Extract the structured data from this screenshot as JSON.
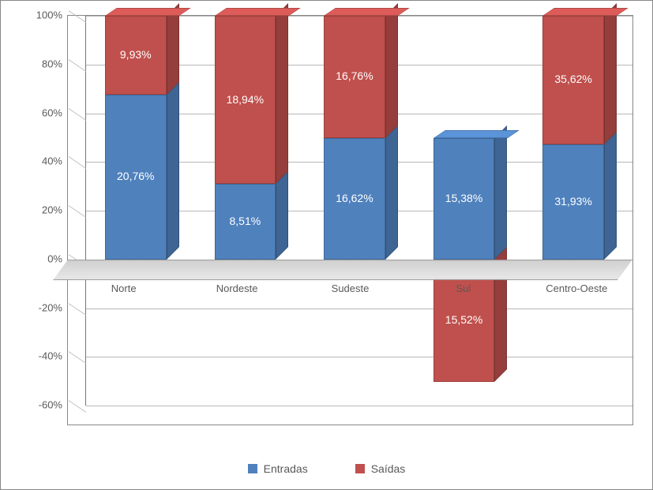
{
  "chart": {
    "type": "3d-stacked-bar",
    "background_color": "#ffffff",
    "plot_border_color": "#888888",
    "grid_color": "#b8b8b8",
    "floor_color_top": "#d0d0d0",
    "floor_color_bottom": "#e8e8e8",
    "axis_label_color": "#595959",
    "axis_fontsize": 13,
    "data_label_color": "#ffffff",
    "data_label_fontsize": 14,
    "ylim_min": -60,
    "ylim_max": 100,
    "ytick_step": 20,
    "ytick_labels": [
      "-60%",
      "-40%",
      "-20%",
      "0%",
      "20%",
      "40%",
      "60%",
      "80%",
      "100%"
    ],
    "categories": [
      "Norte",
      "Nordeste",
      "Sudeste",
      "Sul",
      "Centro-Oeste"
    ],
    "series": [
      {
        "name": "Entradas",
        "color": "#4f81bd"
      },
      {
        "name": "Saídas",
        "color": "#c0504d"
      }
    ],
    "bars": [
      {
        "category": "Norte",
        "stack": [
          {
            "series": "Entradas",
            "from": 0,
            "to": 67.6,
            "label": "20,76%",
            "color": "#4f81bd"
          },
          {
            "series": "Saídas",
            "from": 67.6,
            "to": 100,
            "label": "9,93%",
            "color": "#c0504d"
          }
        ]
      },
      {
        "category": "Nordeste",
        "stack": [
          {
            "series": "Entradas",
            "from": 0,
            "to": 31.0,
            "label": "8,51%",
            "color": "#4f81bd"
          },
          {
            "series": "Saídas",
            "from": 31.0,
            "to": 100,
            "label": "18,94%",
            "color": "#c0504d"
          }
        ]
      },
      {
        "category": "Sudeste",
        "stack": [
          {
            "series": "Entradas",
            "from": 0,
            "to": 49.8,
            "label": "16,62%",
            "color": "#4f81bd"
          },
          {
            "series": "Saídas",
            "from": 49.8,
            "to": 100,
            "label": "16,76%",
            "color": "#c0504d"
          }
        ]
      },
      {
        "category": "Sul",
        "stack": [
          {
            "series": "Entradas",
            "from": 0,
            "to": 49.8,
            "label": "15,38%",
            "color": "#4f81bd"
          },
          {
            "series": "Saídas",
            "from": -50.2,
            "to": 0,
            "label": "15,52%",
            "color": "#c0504d"
          }
        ]
      },
      {
        "category": "Centro-Oeste",
        "stack": [
          {
            "series": "Entradas",
            "from": 0,
            "to": 47.3,
            "label": "31,93%",
            "color": "#4f81bd"
          },
          {
            "series": "Saídas",
            "from": 47.3,
            "to": 100,
            "label": "35,62%",
            "color": "#c0504d"
          }
        ]
      }
    ],
    "legend": [
      {
        "label": "Entradas",
        "color": "#4f81bd"
      },
      {
        "label": "Saídas",
        "color": "#c0504d"
      }
    ]
  }
}
